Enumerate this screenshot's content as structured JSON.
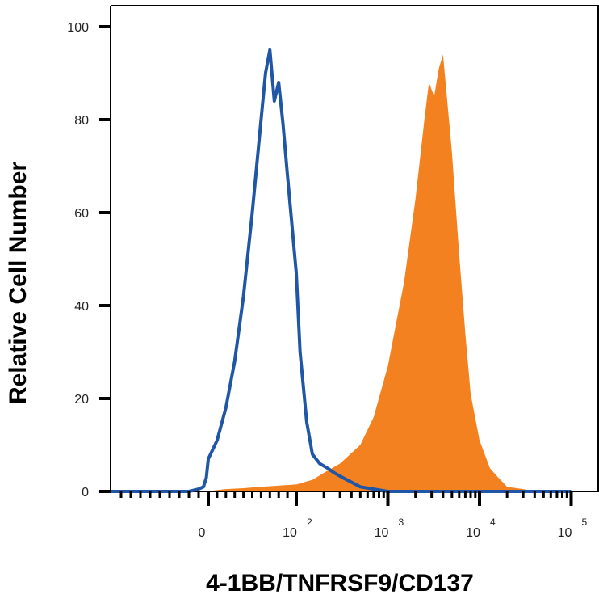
{
  "chart_data": {
    "type": "area",
    "title": "",
    "xlabel": "4-1BB/TNFRSF9/CD137",
    "ylabel": "Relative Cell Number",
    "x_scale": "biexponential",
    "xlim": [
      -1000,
      100000
    ],
    "ylim": [
      0,
      100
    ],
    "grid": false,
    "legend": "none",
    "y_ticks": [
      "0",
      "20",
      "40",
      "60",
      "80",
      "100"
    ],
    "x_ticks": [
      {
        "value": 0,
        "base": "0",
        "exp": ""
      },
      {
        "value": 100,
        "base": "10",
        "exp": "2"
      },
      {
        "value": 1000,
        "base": "10",
        "exp": "3"
      },
      {
        "value": 10000,
        "base": "10",
        "exp": "4"
      },
      {
        "value": 100000,
        "base": "10",
        "exp": "5"
      }
    ],
    "series": [
      {
        "style": "outline",
        "color": "#1f56a5",
        "x": [
          -1000,
          -200,
          -100,
          -50,
          -20,
          0,
          10,
          20,
          30,
          40,
          50,
          60,
          65,
          70,
          75,
          80,
          85,
          90,
          100,
          110,
          130,
          150,
          180,
          220,
          260,
          320,
          400,
          500,
          700,
          1000,
          1500,
          100000
        ],
        "y": [
          0,
          0,
          0.5,
          1,
          3,
          7,
          11,
          18,
          28,
          42,
          60,
          80,
          90,
          95,
          84,
          88,
          79,
          68,
          47,
          30,
          15,
          8,
          6,
          5,
          4,
          3,
          2,
          1,
          0.5,
          0,
          0,
          0
        ]
      },
      {
        "style": "filled",
        "color": "#f4811f",
        "x": [
          -1000,
          0,
          10,
          20,
          40,
          60,
          100,
          150,
          200,
          300,
          500,
          700,
          1000,
          1500,
          2000,
          2500,
          2800,
          3200,
          3600,
          4000,
          5000,
          6000,
          7000,
          8000,
          10000,
          13000,
          16000,
          20000,
          30000,
          40000,
          100000
        ],
        "y": [
          0,
          0,
          0.3,
          0.5,
          0.7,
          1,
          1.5,
          2.5,
          4,
          6,
          10,
          16,
          27,
          45,
          63,
          80,
          88,
          85,
          91,
          94,
          73,
          51,
          34,
          21,
          11,
          5,
          3,
          1,
          0.5,
          0,
          0
        ]
      }
    ]
  }
}
